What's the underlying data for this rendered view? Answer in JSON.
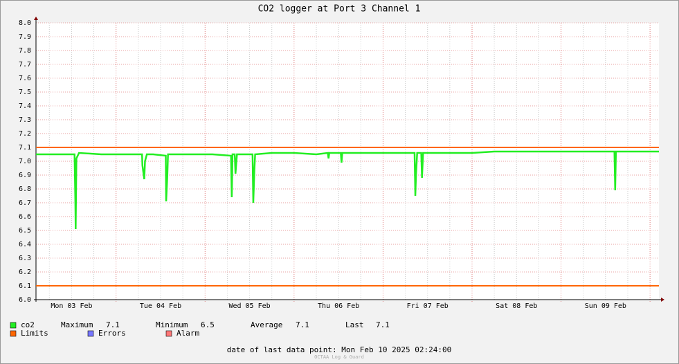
{
  "chart_data": {
    "type": "line",
    "title": "CO2 logger at Port 3 Channel 1",
    "xlim": [
      2.4,
      170.4
    ],
    "xticks": [
      {
        "value": 12,
        "label": "Mon 03 Feb"
      },
      {
        "value": 36,
        "label": "Tue 04 Feb"
      },
      {
        "value": 60,
        "label": "Wed 05 Feb"
      },
      {
        "value": 84,
        "label": "Thu 06 Feb"
      },
      {
        "value": 108,
        "label": "Fri 07 Feb"
      },
      {
        "value": 132,
        "label": "Sat 08 Feb"
      },
      {
        "value": 156,
        "label": "Sun 09 Feb"
      }
    ],
    "xmajor": [
      24,
      48,
      72,
      96,
      120,
      144,
      168
    ],
    "xminor": [
      6,
      12,
      18,
      30,
      36,
      42,
      54,
      60,
      66,
      78,
      84,
      90,
      102,
      108,
      114,
      126,
      132,
      138,
      150,
      156,
      162
    ],
    "ylim": [
      6.0,
      8.0
    ],
    "yticks": [
      {
        "value": 6.0,
        "label": "6.0"
      },
      6.1,
      6.2,
      6.3,
      6.4,
      6.5,
      6.6,
      6.7,
      6.8,
      6.9,
      {
        "value": 7.0,
        "label": "7.0"
      },
      7.1,
      7.2,
      7.3,
      7.4,
      7.5,
      7.6,
      7.7,
      7.8,
      7.9,
      {
        "value": 8.0,
        "label": "8.0"
      }
    ],
    "grid": true,
    "limits": {
      "name": "Limits",
      "color": "#ff6600",
      "values": [
        7.1,
        6.1
      ]
    },
    "series": [
      {
        "name": "co2",
        "color": "#22ee22",
        "x": [
          2.4,
          8,
          12.8,
          13.0,
          13.1,
          13.3,
          14,
          20,
          26,
          31.0,
          31.1,
          31.6,
          31.8,
          32.3,
          34,
          37.4,
          37.5,
          37.8,
          38.0,
          44,
          50,
          55.0,
          55.2,
          55.4,
          56.0,
          56.2,
          56.6,
          60.8,
          61.0,
          61.3,
          61.5,
          66,
          72,
          78,
          81.1,
          81.3,
          81.5,
          84.6,
          84.8,
          85.0,
          90,
          96,
          104.5,
          104.7,
          104.9,
          105.2,
          106.3,
          106.5,
          106.8,
          108,
          114,
          120,
          126,
          132,
          138,
          144,
          150,
          156,
          158.4,
          158.6,
          158.8,
          164,
          170.4
        ],
        "values": [
          7.05,
          7.05,
          7.05,
          6.73,
          6.51,
          7.02,
          7.06,
          7.05,
          7.05,
          7.05,
          6.97,
          6.87,
          7.0,
          7.05,
          7.05,
          7.04,
          6.71,
          6.88,
          7.05,
          7.05,
          7.05,
          7.04,
          6.74,
          7.05,
          7.05,
          6.91,
          7.05,
          7.05,
          6.7,
          6.94,
          7.05,
          7.06,
          7.06,
          7.05,
          7.06,
          7.02,
          7.06,
          7.06,
          6.99,
          7.06,
          7.06,
          7.06,
          7.06,
          6.75,
          6.91,
          7.06,
          7.06,
          6.88,
          7.06,
          7.06,
          7.06,
          7.06,
          7.07,
          7.07,
          7.07,
          7.07,
          7.07,
          7.07,
          7.07,
          6.79,
          7.07,
          7.07,
          7.07
        ]
      }
    ],
    "stats": [
      {
        "label": "Maximum",
        "value": 7.1
      },
      {
        "label": "Minimum",
        "value": 6.5
      },
      {
        "label": "Average",
        "value": 7.1
      },
      {
        "label": "Last",
        "value": 7.1
      }
    ],
    "legend_extra": [
      {
        "name": "Errors",
        "color": "#7777ff"
      },
      {
        "name": "Alarm",
        "color": "#ff7777"
      }
    ],
    "footer": "date of last data point:  Mon Feb 10 2025 02:24:00",
    "credit": "OCTAA Log & Guard"
  }
}
